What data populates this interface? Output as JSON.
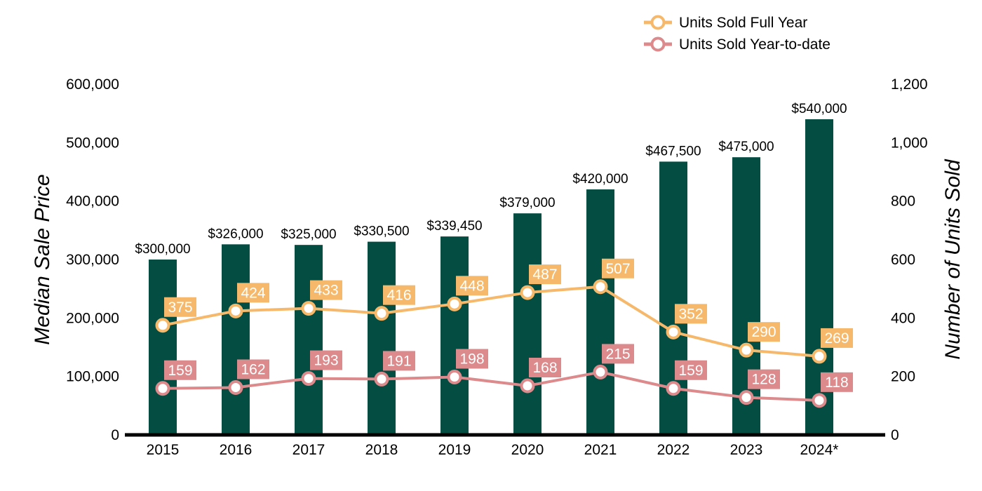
{
  "colors": {
    "bar": "#034d42",
    "full_year": "#f6b96b",
    "ytd": "#dc8a8c",
    "axis": "#000000"
  },
  "chart_data": {
    "type": "bar",
    "categories": [
      "2015",
      "2016",
      "2017",
      "2018",
      "2019",
      "2020",
      "2021",
      "2022",
      "2023",
      "2024*"
    ],
    "bars": {
      "values": [
        300000,
        326000,
        325000,
        330500,
        339450,
        379000,
        420000,
        467500,
        475000,
        540000
      ],
      "labels": [
        "$300,000",
        "$326,000",
        "$325,000",
        "$330,500",
        "$339,450",
        "$379,000",
        "$420,000",
        "$467,500",
        "$475,000",
        "$540,000"
      ]
    },
    "series": [
      {
        "name": "Units Sold Full Year",
        "type": "line",
        "axis": "right",
        "values": [
          375,
          424,
          433,
          416,
          448,
          487,
          507,
          352,
          290,
          269
        ]
      },
      {
        "name": "Units Sold Year-to-date",
        "type": "line",
        "axis": "right",
        "values": [
          159,
          162,
          193,
          191,
          198,
          168,
          215,
          159,
          128,
          118
        ]
      }
    ],
    "ylabel": "Median Sale Price",
    "y2label": "Number of Units Sold",
    "ylim": [
      0,
      600000
    ],
    "y2lim": [
      0,
      1200
    ],
    "yticks": [
      "0",
      "100,000",
      "200,000",
      "300,000",
      "400,000",
      "500,000",
      "600,000"
    ],
    "y2ticks": [
      "0",
      "200",
      "400",
      "600",
      "800",
      "1,000",
      "1,200"
    ],
    "grid": false,
    "legend_position": "top-right"
  }
}
